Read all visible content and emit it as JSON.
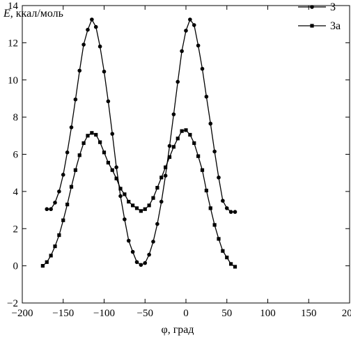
{
  "chart_data": {
    "type": "line",
    "ylabel_var": "E",
    "ylabel_unit": ", ккал/моль",
    "xlabel": "φ, град",
    "xlim": [
      -200,
      200
    ],
    "ylim": [
      -2,
      14
    ],
    "xticks": [
      -200,
      -150,
      -100,
      -50,
      0,
      50,
      100,
      150,
      200
    ],
    "yticks": [
      -2,
      0,
      2,
      4,
      6,
      8,
      10,
      12,
      14
    ],
    "xtick_labels": [
      "−200",
      "−150",
      "−100",
      "−50",
      "0",
      "50",
      "100",
      "150",
      "200"
    ],
    "ytick_labels": [
      "−2",
      "0",
      "2",
      "4",
      "6",
      "8",
      "10",
      "12",
      "14"
    ],
    "grid": false,
    "legend_position": "top-right",
    "series": [
      {
        "name": "3",
        "marker": "circle",
        "color": "#000000",
        "points": [
          [
            -170,
            3.05
          ],
          [
            -165,
            3.05
          ],
          [
            -160,
            3.4
          ],
          [
            -155,
            4.0
          ],
          [
            -150,
            4.9
          ],
          [
            -145,
            6.1
          ],
          [
            -140,
            7.45
          ],
          [
            -135,
            8.95
          ],
          [
            -130,
            10.5
          ],
          [
            -125,
            11.9
          ],
          [
            -120,
            12.7
          ],
          [
            -115,
            13.25
          ],
          [
            -110,
            12.85
          ],
          [
            -105,
            11.8
          ],
          [
            -100,
            10.45
          ],
          [
            -95,
            8.85
          ],
          [
            -90,
            7.1
          ],
          [
            -85,
            5.3
          ],
          [
            -80,
            3.75
          ],
          [
            -75,
            2.5
          ],
          [
            -70,
            1.35
          ],
          [
            -65,
            0.75
          ],
          [
            -60,
            0.2
          ],
          [
            -55,
            0.05
          ],
          [
            -50,
            0.15
          ],
          [
            -45,
            0.6
          ],
          [
            -40,
            1.3
          ],
          [
            -35,
            2.25
          ],
          [
            -30,
            3.45
          ],
          [
            -25,
            4.85
          ],
          [
            -20,
            6.45
          ],
          [
            -15,
            8.15
          ],
          [
            -10,
            9.9
          ],
          [
            -5,
            11.55
          ],
          [
            0,
            12.65
          ],
          [
            5,
            13.25
          ],
          [
            10,
            12.95
          ],
          [
            15,
            11.85
          ],
          [
            20,
            10.6
          ],
          [
            25,
            9.1
          ],
          [
            30,
            7.65
          ],
          [
            35,
            6.15
          ],
          [
            40,
            4.75
          ],
          [
            45,
            3.5
          ],
          [
            50,
            3.1
          ],
          [
            55,
            2.9
          ],
          [
            60,
            2.9
          ]
        ]
      },
      {
        "name": "3а",
        "marker": "square",
        "color": "#000000",
        "points": [
          [
            -175,
            0.0
          ],
          [
            -170,
            0.2
          ],
          [
            -165,
            0.55
          ],
          [
            -160,
            1.05
          ],
          [
            -155,
            1.65
          ],
          [
            -150,
            2.45
          ],
          [
            -145,
            3.3
          ],
          [
            -140,
            4.25
          ],
          [
            -135,
            5.15
          ],
          [
            -130,
            5.95
          ],
          [
            -125,
            6.6
          ],
          [
            -120,
            7.0
          ],
          [
            -115,
            7.15
          ],
          [
            -110,
            7.05
          ],
          [
            -105,
            6.65
          ],
          [
            -100,
            6.1
          ],
          [
            -95,
            5.55
          ],
          [
            -90,
            5.15
          ],
          [
            -85,
            4.7
          ],
          [
            -80,
            4.15
          ],
          [
            -75,
            3.85
          ],
          [
            -70,
            3.45
          ],
          [
            -65,
            3.25
          ],
          [
            -60,
            3.1
          ],
          [
            -55,
            2.95
          ],
          [
            -50,
            3.05
          ],
          [
            -45,
            3.25
          ],
          [
            -40,
            3.65
          ],
          [
            -35,
            4.2
          ],
          [
            -30,
            4.75
          ],
          [
            -25,
            5.3
          ],
          [
            -20,
            5.85
          ],
          [
            -15,
            6.4
          ],
          [
            -10,
            6.85
          ],
          [
            -5,
            7.25
          ],
          [
            0,
            7.3
          ],
          [
            5,
            7.05
          ],
          [
            10,
            6.6
          ],
          [
            15,
            5.9
          ],
          [
            20,
            5.15
          ],
          [
            25,
            4.05
          ],
          [
            30,
            3.1
          ],
          [
            35,
            2.2
          ],
          [
            40,
            1.45
          ],
          [
            45,
            0.8
          ],
          [
            50,
            0.45
          ],
          [
            55,
            0.1
          ],
          [
            60,
            -0.05
          ]
        ]
      }
    ]
  }
}
